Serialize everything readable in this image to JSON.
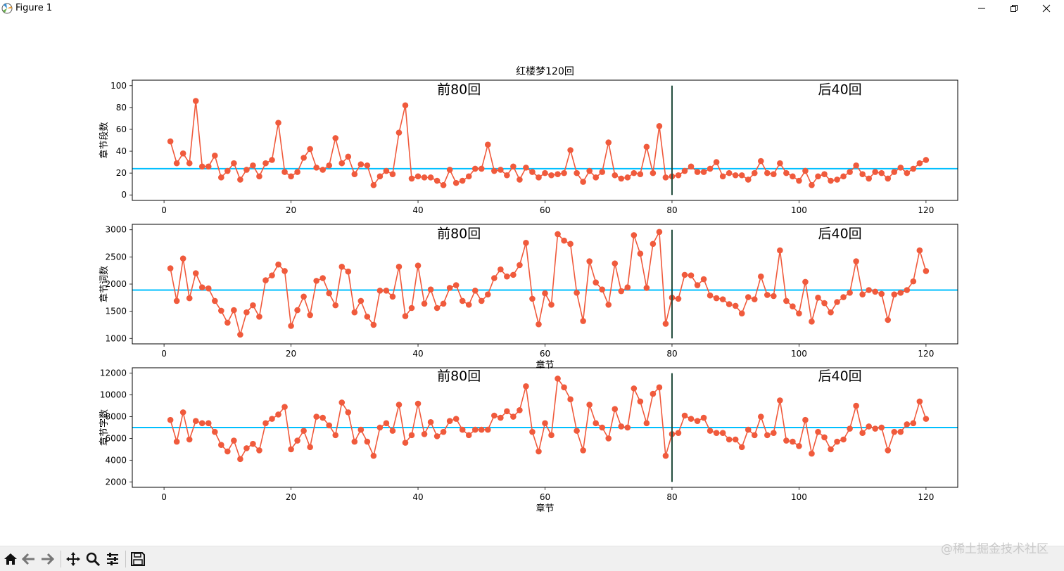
{
  "window": {
    "title": "Figure 1"
  },
  "watermark": "@稀土掘金技术社区",
  "toolbar": {
    "buttons": [
      "home-icon",
      "back-icon",
      "forward-icon",
      "pan-icon",
      "zoom-icon",
      "configure-subplots-icon",
      "save-icon"
    ]
  },
  "colors": {
    "line": "#f05a3c",
    "mean": "#00bfff",
    "divider": "#1f4a3a"
  },
  "chart_data": [
    {
      "type": "line",
      "title": "红楼梦120回",
      "ylabel": "章节段数",
      "xlabel": "",
      "xlim": [
        -5,
        125
      ],
      "ylim": [
        -5,
        105
      ],
      "xticks": [
        0,
        20,
        40,
        60,
        80,
        100,
        120
      ],
      "yticks": [
        0,
        20,
        40,
        60,
        80,
        100
      ],
      "mean": 24,
      "divider": {
        "x": 80,
        "y": [
          0,
          100
        ]
      },
      "annotations": [
        {
          "text": "前80回",
          "x": 43,
          "y": 95
        },
        {
          "text": "后40回",
          "x": 103,
          "y": 95
        }
      ],
      "x_start": 1,
      "values": [
        49,
        29,
        38,
        29,
        86,
        26,
        26,
        36,
        16,
        22,
        29,
        14,
        23,
        27,
        17,
        29,
        32,
        66,
        21,
        17,
        21,
        34,
        42,
        25,
        23,
        27,
        52,
        29,
        35,
        19,
        28,
        27,
        9,
        17,
        22,
        19,
        57,
        82,
        15,
        17,
        16,
        16,
        13,
        9,
        23,
        11,
        13,
        17,
        24,
        24,
        46,
        22,
        23,
        18,
        26,
        14,
        25,
        21,
        16,
        20,
        18,
        19,
        20,
        41,
        20,
        12,
        22,
        16,
        21,
        48,
        18,
        15,
        16,
        20,
        19,
        44,
        20,
        63,
        16,
        17,
        18,
        22,
        26,
        21,
        21,
        24,
        30,
        17,
        20,
        18,
        18,
        14,
        20,
        31,
        20,
        19,
        29,
        20,
        17,
        13,
        22,
        9,
        17,
        19,
        13,
        14,
        17,
        21,
        27,
        19,
        15,
        21,
        20,
        15,
        21,
        25,
        20,
        24,
        29,
        32
      ]
    },
    {
      "type": "line",
      "title": "",
      "ylabel": "章节词数",
      "xlabel": "章节",
      "xlim": [
        -5,
        125
      ],
      "ylim": [
        900,
        3100
      ],
      "xticks": [
        0,
        20,
        40,
        60,
        80,
        100,
        120
      ],
      "yticks": [
        1000,
        1500,
        2000,
        2500,
        3000
      ],
      "mean": 1890,
      "divider": {
        "x": 80,
        "y": [
          1000,
          3000
        ]
      },
      "annotations": [
        {
          "text": "前80回",
          "x": 43,
          "y": 2900
        },
        {
          "text": "后40回",
          "x": 103,
          "y": 2900
        }
      ],
      "x_start": 1,
      "values": [
        2290,
        1690,
        2470,
        1740,
        2200,
        1940,
        1920,
        1690,
        1510,
        1290,
        1520,
        1070,
        1480,
        1610,
        1400,
        2070,
        2160,
        2360,
        2240,
        1230,
        1520,
        1770,
        1430,
        2060,
        2110,
        1830,
        1610,
        2320,
        2230,
        1480,
        1690,
        1400,
        1250,
        1880,
        1880,
        1770,
        2320,
        1410,
        1560,
        2340,
        1640,
        1900,
        1560,
        1640,
        1930,
        1980,
        1690,
        1620,
        1880,
        1690,
        1810,
        2110,
        2270,
        2140,
        2170,
        2350,
        2760,
        1730,
        1260,
        1830,
        1620,
        2920,
        2800,
        2740,
        1840,
        1320,
        2420,
        2030,
        1900,
        1620,
        2380,
        1870,
        1940,
        2900,
        2560,
        1930,
        2740,
        2960,
        1270,
        1750,
        1730,
        2170,
        2160,
        1980,
        2090,
        1790,
        1740,
        1720,
        1630,
        1600,
        1460,
        1760,
        1720,
        2140,
        1800,
        1780,
        2620,
        1690,
        1590,
        1460,
        2040,
        1310,
        1750,
        1650,
        1480,
        1670,
        1760,
        1840,
        2420,
        1810,
        1890,
        1860,
        1820,
        1340,
        1810,
        1840,
        1890,
        2050,
        2620,
        2240
      ]
    },
    {
      "type": "line",
      "title": "",
      "ylabel": "章节字数",
      "xlabel": "章节",
      "xlim": [
        -5,
        125
      ],
      "ylim": [
        1500,
        12500
      ],
      "xticks": [
        0,
        20,
        40,
        60,
        80,
        100,
        120
      ],
      "yticks": [
        2000,
        4000,
        6000,
        8000,
        10000,
        12000
      ],
      "mean": 7000,
      "divider": {
        "x": 80,
        "y": [
          2000,
          12000
        ]
      },
      "annotations": [
        {
          "text": "前80回",
          "x": 43,
          "y": 11600
        },
        {
          "text": "后40回",
          "x": 103,
          "y": 11600
        }
      ],
      "x_start": 1,
      "values": [
        7700,
        5700,
        8400,
        5900,
        7600,
        7400,
        7400,
        6600,
        5400,
        4800,
        5800,
        4100,
        5100,
        5500,
        4900,
        7400,
        7800,
        8200,
        8900,
        5000,
        5800,
        6700,
        5200,
        8000,
        7900,
        7200,
        6300,
        9300,
        8400,
        5700,
        6800,
        5700,
        4400,
        7000,
        7400,
        6700,
        9100,
        5600,
        6300,
        9200,
        6400,
        7500,
        6200,
        6600,
        7600,
        7800,
        6800,
        6300,
        6800,
        6800,
        6800,
        8100,
        7900,
        8500,
        8000,
        8600,
        10800,
        6600,
        4800,
        7400,
        6300,
        11500,
        10700,
        9600,
        6700,
        4900,
        9100,
        7400,
        7000,
        6000,
        8700,
        7100,
        7000,
        10600,
        9400,
        7400,
        10100,
        10700,
        4400,
        6400,
        6500,
        8100,
        7800,
        7600,
        7900,
        6700,
        6500,
        6500,
        5900,
        5900,
        5200,
        6800,
        6300,
        8000,
        6300,
        6500,
        9500,
        5800,
        5700,
        5300,
        7700,
        4600,
        6600,
        6100,
        5000,
        5700,
        5900,
        6900,
        9000,
        6500,
        7100,
        6900,
        7000,
        4900,
        6600,
        6600,
        7300,
        7400,
        9400,
        7800
      ]
    }
  ]
}
